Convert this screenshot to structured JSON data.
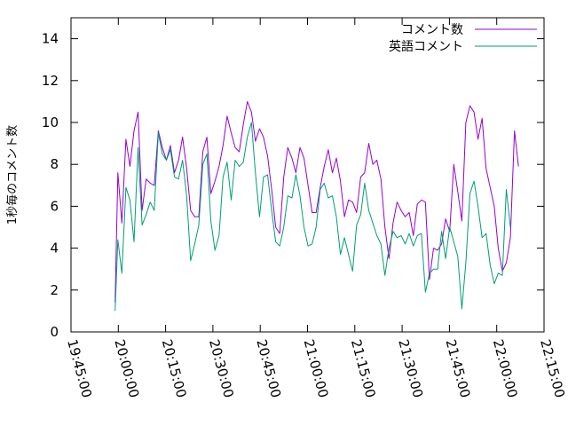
{
  "chart_data": {
    "type": "line",
    "title": "",
    "xlabel": "",
    "ylabel": "1秒毎のコメント数",
    "xlim": [
      "19:45:00",
      "22:15:00"
    ],
    "ylim": [
      0,
      15
    ],
    "x_tick_labels": [
      "19:45:00",
      "20:00:00",
      "20:15:00",
      "20:30:00",
      "20:45:00",
      "21:00:00",
      "21:15:00",
      "21:30:00",
      "21:45:00",
      "22:00:00",
      "22:15:00"
    ],
    "y_ticks": [
      0,
      2,
      4,
      6,
      8,
      10,
      12,
      14
    ],
    "y_tick_labels": [
      "0",
      "2",
      "4",
      "6",
      "8",
      "10",
      "12",
      "14"
    ],
    "legend_position": "top-right",
    "grid": false,
    "series": [
      {
        "name": "コメント数",
        "color": "#9400d3",
        "points": [
          [
            "19:59:00",
            1.4
          ],
          [
            "19:59:51",
            7.6
          ],
          [
            "20:01:08",
            5.2
          ],
          [
            "20:02:25",
            9.2
          ],
          [
            "20:03:42",
            7.9
          ],
          [
            "20:04:59",
            9.6
          ],
          [
            "20:06:16",
            10.5
          ],
          [
            "20:07:33",
            5.8
          ],
          [
            "20:08:50",
            7.3
          ],
          [
            "20:10:07",
            7.1
          ],
          [
            "20:11:24",
            7.0
          ],
          [
            "20:12:41",
            9.6
          ],
          [
            "20:13:58",
            8.8
          ],
          [
            "20:15:15",
            8.2
          ],
          [
            "20:16:32",
            8.9
          ],
          [
            "20:17:49",
            7.6
          ],
          [
            "20:19:06",
            8.2
          ],
          [
            "20:20:23",
            9.3
          ],
          [
            "20:21:40",
            7.8
          ],
          [
            "20:22:57",
            5.8
          ],
          [
            "20:24:14",
            5.5
          ],
          [
            "20:25:31",
            5.5
          ],
          [
            "20:26:48",
            8.6
          ],
          [
            "20:28:05",
            9.3
          ],
          [
            "20:29:22",
            6.6
          ],
          [
            "20:30:39",
            7.2
          ],
          [
            "20:31:56",
            7.9
          ],
          [
            "20:33:13",
            8.9
          ],
          [
            "20:34:30",
            10.3
          ],
          [
            "20:35:47",
            9.5
          ],
          [
            "20:37:04",
            8.8
          ],
          [
            "20:38:21",
            8.6
          ],
          [
            "20:39:38",
            9.9
          ],
          [
            "20:40:55",
            11.0
          ],
          [
            "20:42:12",
            10.5
          ],
          [
            "20:43:29",
            9.1
          ],
          [
            "20:44:46",
            9.7
          ],
          [
            "20:46:03",
            9.3
          ],
          [
            "20:47:20",
            8.4
          ],
          [
            "20:48:37",
            6.8
          ],
          [
            "20:49:54",
            5.0
          ],
          [
            "20:51:11",
            4.7
          ],
          [
            "20:52:28",
            7.4
          ],
          [
            "20:53:45",
            8.8
          ],
          [
            "20:55:02",
            8.3
          ],
          [
            "20:56:19",
            7.6
          ],
          [
            "20:57:36",
            8.8
          ],
          [
            "20:58:53",
            8.3
          ],
          [
            "21:00:10",
            7.0
          ],
          [
            "21:01:27",
            5.7
          ],
          [
            "21:02:44",
            5.7
          ],
          [
            "21:04:01",
            6.9
          ],
          [
            "21:05:18",
            7.9
          ],
          [
            "21:06:35",
            8.7
          ],
          [
            "21:07:52",
            7.6
          ],
          [
            "21:09:09",
            8.3
          ],
          [
            "21:10:26",
            7.2
          ],
          [
            "21:11:43",
            5.5
          ],
          [
            "21:13:00",
            6.3
          ],
          [
            "21:14:17",
            6.2
          ],
          [
            "21:15:34",
            5.7
          ],
          [
            "21:16:51",
            7.4
          ],
          [
            "21:18:08",
            7.6
          ],
          [
            "21:19:25",
            9.0
          ],
          [
            "21:20:42",
            8.0
          ],
          [
            "21:21:59",
            8.2
          ],
          [
            "21:23:16",
            7.3
          ],
          [
            "21:24:33",
            5.0
          ],
          [
            "21:25:50",
            3.5
          ],
          [
            "21:27:07",
            5.2
          ],
          [
            "21:28:24",
            6.2
          ],
          [
            "21:29:41",
            5.8
          ],
          [
            "21:30:58",
            5.5
          ],
          [
            "21:32:15",
            5.7
          ],
          [
            "21:33:32",
            4.6
          ],
          [
            "21:34:49",
            6.1
          ],
          [
            "21:36:06",
            6.3
          ],
          [
            "21:37:23",
            6.2
          ],
          [
            "21:38:40",
            2.5
          ],
          [
            "21:39:57",
            4.0
          ],
          [
            "21:41:14",
            3.9
          ],
          [
            "21:42:31",
            4.2
          ],
          [
            "21:43:48",
            5.4
          ],
          [
            "21:45:05",
            4.8
          ],
          [
            "21:46:22",
            8.0
          ],
          [
            "21:47:39",
            6.7
          ],
          [
            "21:48:56",
            5.3
          ],
          [
            "21:50:13",
            10.0
          ],
          [
            "21:51:30",
            10.8
          ],
          [
            "21:52:47",
            10.5
          ],
          [
            "21:54:04",
            9.2
          ],
          [
            "21:55:21",
            10.2
          ],
          [
            "21:56:38",
            7.8
          ],
          [
            "21:57:55",
            6.9
          ],
          [
            "21:59:12",
            6.0
          ],
          [
            "22:00:29",
            4.0
          ],
          [
            "22:01:46",
            2.9
          ],
          [
            "22:03:03",
            3.3
          ],
          [
            "22:04:20",
            4.5
          ],
          [
            "22:05:37",
            9.6
          ],
          [
            "22:06:54",
            7.9
          ]
        ]
      },
      {
        "name": "英語コメント",
        "color": "#009e73",
        "points": [
          [
            "19:59:00",
            1.0
          ],
          [
            "19:59:51",
            4.4
          ],
          [
            "20:01:08",
            2.8
          ],
          [
            "20:02:25",
            6.9
          ],
          [
            "20:03:42",
            6.3
          ],
          [
            "20:04:59",
            4.3
          ],
          [
            "20:06:16",
            8.8
          ],
          [
            "20:07:33",
            5.1
          ],
          [
            "20:08:50",
            5.6
          ],
          [
            "20:10:07",
            6.2
          ],
          [
            "20:11:24",
            5.8
          ],
          [
            "20:12:41",
            9.5
          ],
          [
            "20:13:58",
            8.5
          ],
          [
            "20:15:15",
            8.2
          ],
          [
            "20:16:32",
            8.7
          ],
          [
            "20:17:49",
            7.4
          ],
          [
            "20:19:06",
            7.3
          ],
          [
            "20:20:23",
            8.2
          ],
          [
            "20:21:40",
            6.5
          ],
          [
            "20:22:57",
            3.4
          ],
          [
            "20:24:14",
            4.2
          ],
          [
            "20:25:31",
            5.1
          ],
          [
            "20:26:48",
            8.0
          ],
          [
            "20:28:05",
            8.5
          ],
          [
            "20:29:22",
            5.3
          ],
          [
            "20:30:39",
            3.9
          ],
          [
            "20:31:56",
            4.6
          ],
          [
            "20:33:13",
            7.4
          ],
          [
            "20:34:30",
            8.1
          ],
          [
            "20:35:47",
            6.3
          ],
          [
            "20:37:04",
            8.2
          ],
          [
            "20:38:21",
            7.9
          ],
          [
            "20:39:38",
            8.1
          ],
          [
            "20:40:55",
            9.3
          ],
          [
            "20:42:12",
            10.0
          ],
          [
            "20:43:29",
            7.6
          ],
          [
            "20:44:46",
            5.5
          ],
          [
            "20:46:03",
            7.4
          ],
          [
            "20:47:20",
            7.5
          ],
          [
            "20:48:37",
            5.8
          ],
          [
            "20:49:54",
            4.3
          ],
          [
            "20:51:11",
            4.1
          ],
          [
            "20:52:28",
            5.0
          ],
          [
            "20:53:45",
            6.5
          ],
          [
            "20:55:02",
            6.4
          ],
          [
            "20:56:19",
            7.5
          ],
          [
            "20:57:36",
            6.5
          ],
          [
            "20:58:53",
            5.0
          ],
          [
            "21:00:10",
            4.1
          ],
          [
            "21:01:27",
            4.2
          ],
          [
            "21:02:44",
            5.0
          ],
          [
            "21:04:01",
            6.8
          ],
          [
            "21:05:18",
            7.1
          ],
          [
            "21:06:35",
            6.4
          ],
          [
            "21:07:52",
            6.5
          ],
          [
            "21:09:09",
            5.5
          ],
          [
            "21:10:26",
            3.7
          ],
          [
            "21:11:43",
            4.5
          ],
          [
            "21:13:00",
            3.7
          ],
          [
            "21:14:17",
            2.9
          ],
          [
            "21:15:34",
            5.1
          ],
          [
            "21:16:51",
            5.6
          ],
          [
            "21:18:08",
            7.1
          ],
          [
            "21:19:25",
            5.8
          ],
          [
            "21:20:42",
            5.2
          ],
          [
            "21:21:59",
            4.6
          ],
          [
            "21:23:16",
            4.2
          ],
          [
            "21:24:33",
            2.7
          ],
          [
            "21:25:50",
            4.0
          ],
          [
            "21:27:07",
            4.8
          ],
          [
            "21:28:24",
            4.5
          ],
          [
            "21:29:41",
            4.6
          ],
          [
            "21:30:58",
            4.2
          ],
          [
            "21:32:15",
            4.7
          ],
          [
            "21:33:32",
            4.1
          ],
          [
            "21:34:49",
            4.6
          ],
          [
            "21:36:06",
            4.7
          ],
          [
            "21:37:23",
            1.9
          ],
          [
            "21:38:40",
            2.8
          ],
          [
            "21:39:57",
            3.0
          ],
          [
            "21:41:14",
            3.0
          ],
          [
            "21:42:31",
            4.8
          ],
          [
            "21:43:48",
            3.5
          ],
          [
            "21:45:05",
            5.0
          ],
          [
            "21:46:22",
            4.3
          ],
          [
            "21:47:39",
            3.6
          ],
          [
            "21:48:56",
            1.1
          ],
          [
            "21:50:13",
            3.3
          ],
          [
            "21:51:30",
            6.6
          ],
          [
            "21:52:47",
            7.2
          ],
          [
            "21:54:04",
            6.0
          ],
          [
            "21:55:21",
            4.5
          ],
          [
            "21:56:38",
            4.7
          ],
          [
            "21:57:55",
            3.2
          ],
          [
            "21:59:12",
            2.3
          ],
          [
            "22:00:29",
            2.8
          ],
          [
            "22:01:46",
            2.7
          ],
          [
            "22:03:03",
            6.8
          ],
          [
            "22:04:20",
            5.0
          ]
        ]
      }
    ]
  }
}
